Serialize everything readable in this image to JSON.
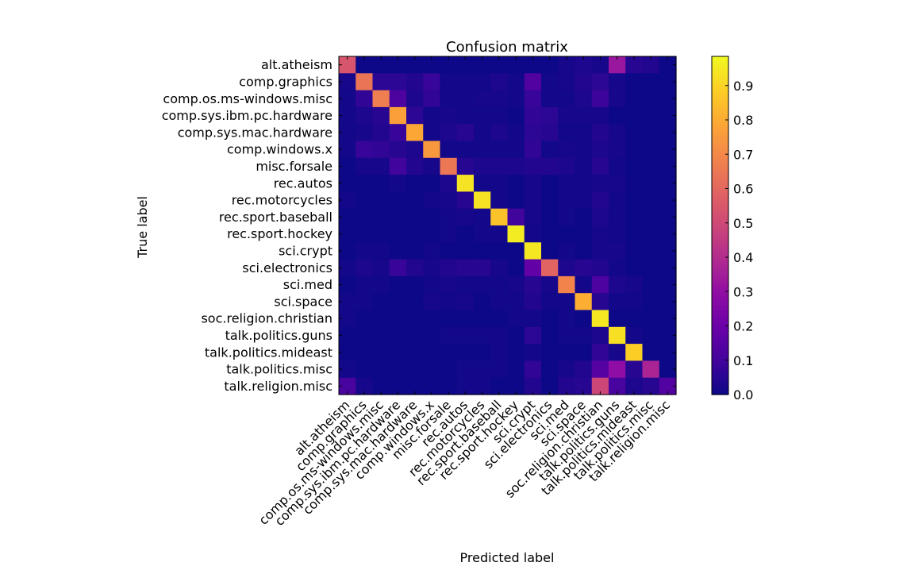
{
  "chart_data": {
    "type": "heatmap",
    "title": "Confusion matrix",
    "xlabel": "Predicted label",
    "ylabel": "True label",
    "labels": [
      "alt.atheism",
      "comp.graphics",
      "comp.os.ms-windows.misc",
      "comp.sys.ibm.pc.hardware",
      "comp.sys.mac.hardware",
      "comp.windows.x",
      "misc.forsale",
      "rec.autos",
      "rec.motorcycles",
      "rec.sport.baseball",
      "rec.sport.hockey",
      "sci.crypt",
      "sci.electronics",
      "sci.med",
      "sci.space",
      "soc.religion.christian",
      "talk.politics.guns",
      "talk.politics.mideast",
      "talk.politics.misc",
      "talk.religion.misc"
    ],
    "matrix": [
      [
        0.55,
        0.0,
        0.0,
        0.0,
        0.0,
        0.0,
        0.0,
        0.0,
        0.0,
        0.0,
        0.0,
        0.0,
        0.0,
        0.02,
        0.03,
        0.02,
        0.33,
        0.05,
        0.04,
        0.0
      ],
      [
        0.02,
        0.65,
        0.06,
        0.06,
        0.04,
        0.08,
        0.01,
        0.01,
        0.01,
        0.03,
        0.01,
        0.14,
        0.01,
        0.02,
        0.04,
        0.06,
        0.02,
        0.0,
        0.0,
        0.0
      ],
      [
        0.01,
        0.07,
        0.68,
        0.13,
        0.03,
        0.07,
        0.01,
        0.01,
        0.02,
        0.02,
        0.01,
        0.08,
        0.01,
        0.01,
        0.03,
        0.09,
        0.02,
        0.0,
        0.0,
        0.0
      ],
      [
        0.01,
        0.03,
        0.05,
        0.78,
        0.06,
        0.01,
        0.02,
        0.01,
        0.01,
        0.01,
        0.0,
        0.07,
        0.06,
        0.02,
        0.02,
        0.02,
        0.0,
        0.0,
        0.0,
        0.0
      ],
      [
        0.01,
        0.02,
        0.04,
        0.08,
        0.8,
        0.01,
        0.03,
        0.05,
        0.01,
        0.03,
        0.01,
        0.06,
        0.05,
        0.01,
        0.01,
        0.04,
        0.02,
        0.0,
        0.0,
        0.0
      ],
      [
        0.01,
        0.08,
        0.07,
        0.05,
        0.03,
        0.76,
        0.01,
        0.01,
        0.01,
        0.01,
        0.01,
        0.07,
        0.01,
        0.02,
        0.01,
        0.03,
        0.02,
        0.0,
        0.0,
        0.0
      ],
      [
        0.0,
        0.02,
        0.02,
        0.1,
        0.04,
        0.02,
        0.66,
        0.05,
        0.03,
        0.03,
        0.03,
        0.04,
        0.04,
        0.03,
        0.01,
        0.05,
        0.01,
        0.0,
        0.0,
        0.0
      ],
      [
        0.0,
        0.0,
        0.0,
        0.01,
        0.0,
        0.0,
        0.03,
        0.95,
        0.01,
        0.01,
        0.0,
        0.02,
        0.0,
        0.01,
        0.01,
        0.02,
        0.02,
        0.0,
        0.0,
        0.0
      ],
      [
        0.01,
        0.0,
        0.0,
        0.0,
        0.0,
        0.01,
        0.02,
        0.05,
        0.95,
        0.01,
        0.0,
        0.02,
        0.0,
        0.01,
        0.01,
        0.04,
        0.01,
        0.0,
        0.0,
        0.0
      ],
      [
        0.0,
        0.0,
        0.0,
        0.0,
        0.0,
        0.0,
        0.01,
        0.02,
        0.01,
        0.87,
        0.1,
        0.02,
        0.0,
        0.01,
        0.0,
        0.03,
        0.01,
        0.0,
        0.0,
        0.0
      ],
      [
        0.0,
        0.0,
        0.0,
        0.0,
        0.0,
        0.0,
        0.01,
        0.0,
        0.01,
        0.01,
        0.97,
        0.01,
        0.0,
        0.0,
        0.0,
        0.02,
        0.01,
        0.0,
        0.0,
        0.0
      ],
      [
        0.0,
        0.01,
        0.01,
        0.0,
        0.0,
        0.01,
        0.0,
        0.0,
        0.0,
        0.0,
        0.0,
        0.96,
        0.0,
        0.01,
        0.0,
        0.02,
        0.02,
        0.0,
        0.0,
        0.0
      ],
      [
        0.01,
        0.03,
        0.02,
        0.08,
        0.04,
        0.02,
        0.04,
        0.05,
        0.05,
        0.02,
        0.0,
        0.18,
        0.6,
        0.03,
        0.05,
        0.04,
        0.01,
        0.0,
        0.0,
        0.0
      ],
      [
        0.0,
        0.01,
        0.01,
        0.0,
        0.0,
        0.01,
        0.02,
        0.01,
        0.01,
        0.01,
        0.02,
        0.05,
        0.02,
        0.7,
        0.01,
        0.13,
        0.03,
        0.02,
        0.0,
        0.0
      ],
      [
        0.01,
        0.01,
        0.0,
        0.0,
        0.0,
        0.02,
        0.01,
        0.02,
        0.0,
        0.01,
        0.01,
        0.04,
        0.01,
        0.01,
        0.82,
        0.05,
        0.01,
        0.01,
        0.0,
        0.0
      ],
      [
        0.01,
        0.0,
        0.0,
        0.0,
        0.0,
        0.0,
        0.0,
        0.0,
        0.0,
        0.0,
        0.01,
        0.01,
        0.0,
        0.01,
        0.0,
        0.96,
        0.0,
        0.0,
        0.0,
        0.0
      ],
      [
        0.0,
        0.0,
        0.0,
        0.0,
        0.0,
        0.0,
        0.01,
        0.01,
        0.01,
        0.01,
        0.0,
        0.06,
        0.0,
        0.01,
        0.01,
        0.03,
        0.94,
        0.01,
        0.0,
        0.0
      ],
      [
        0.0,
        0.0,
        0.0,
        0.0,
        0.0,
        0.0,
        0.0,
        0.0,
        0.0,
        0.01,
        0.0,
        0.01,
        0.0,
        0.0,
        0.0,
        0.07,
        0.02,
        0.9,
        0.0,
        0.0
      ],
      [
        0.01,
        0.0,
        0.0,
        0.0,
        0.0,
        0.0,
        0.0,
        0.01,
        0.01,
        0.01,
        0.0,
        0.07,
        0.0,
        0.02,
        0.04,
        0.15,
        0.3,
        0.05,
        0.38,
        0.0
      ],
      [
        0.12,
        0.02,
        0.0,
        0.0,
        0.0,
        0.0,
        0.0,
        0.01,
        0.01,
        0.0,
        0.0,
        0.04,
        0.0,
        0.04,
        0.05,
        0.5,
        0.12,
        0.03,
        0.05,
        0.14
      ]
    ],
    "colormap": "plasma",
    "vmin": 0.0,
    "vmax": 1.0,
    "colorbar_ticks": [
      "0.0",
      "0.1",
      "0.2",
      "0.3",
      "0.4",
      "0.5",
      "0.6",
      "0.7",
      "0.8",
      "0.9"
    ],
    "colorbar_tick_values": [
      0.0,
      0.1,
      0.2,
      0.3,
      0.4,
      0.5,
      0.6,
      0.7,
      0.8,
      0.9
    ],
    "grid": false,
    "legend": "colorbar right"
  }
}
